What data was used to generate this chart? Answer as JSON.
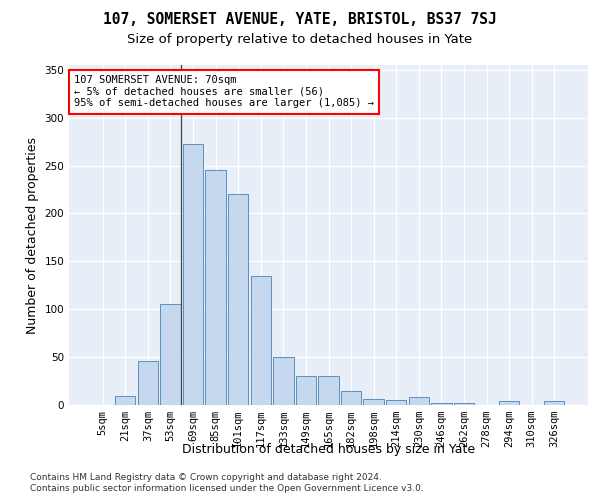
{
  "title_line1": "107, SOMERSET AVENUE, YATE, BRISTOL, BS37 7SJ",
  "title_line2": "Size of property relative to detached houses in Yate",
  "xlabel": "Distribution of detached houses by size in Yate",
  "ylabel": "Number of detached properties",
  "bin_labels": [
    "5sqm",
    "21sqm",
    "37sqm",
    "53sqm",
    "69sqm",
    "85sqm",
    "101sqm",
    "117sqm",
    "133sqm",
    "149sqm",
    "165sqm",
    "182sqm",
    "198sqm",
    "214sqm",
    "230sqm",
    "246sqm",
    "262sqm",
    "278sqm",
    "294sqm",
    "310sqm",
    "326sqm"
  ],
  "bar_values": [
    0,
    9,
    46,
    105,
    272,
    245,
    220,
    135,
    50,
    30,
    30,
    15,
    6,
    5,
    8,
    2,
    2,
    0,
    4,
    0,
    4
  ],
  "bar_color": "#c5d8ee",
  "bar_edge_color": "#5a90c0",
  "highlight_bin": 3,
  "annotation_text": "107 SOMERSET AVENUE: 70sqm\n← 5% of detached houses are smaller (56)\n95% of semi-detached houses are larger (1,085) →",
  "annotation_box_color": "white",
  "annotation_box_edge": "red",
  "ylim": [
    0,
    355
  ],
  "yticks": [
    0,
    50,
    100,
    150,
    200,
    250,
    300,
    350
  ],
  "bg_color": "#e8eef7",
  "footer_line1": "Contains HM Land Registry data © Crown copyright and database right 2024.",
  "footer_line2": "Contains public sector information licensed under the Open Government Licence v3.0.",
  "title_fontsize": 10.5,
  "subtitle_fontsize": 9.5,
  "axis_label_fontsize": 9,
  "tick_fontsize": 7.5,
  "footer_fontsize": 6.5
}
